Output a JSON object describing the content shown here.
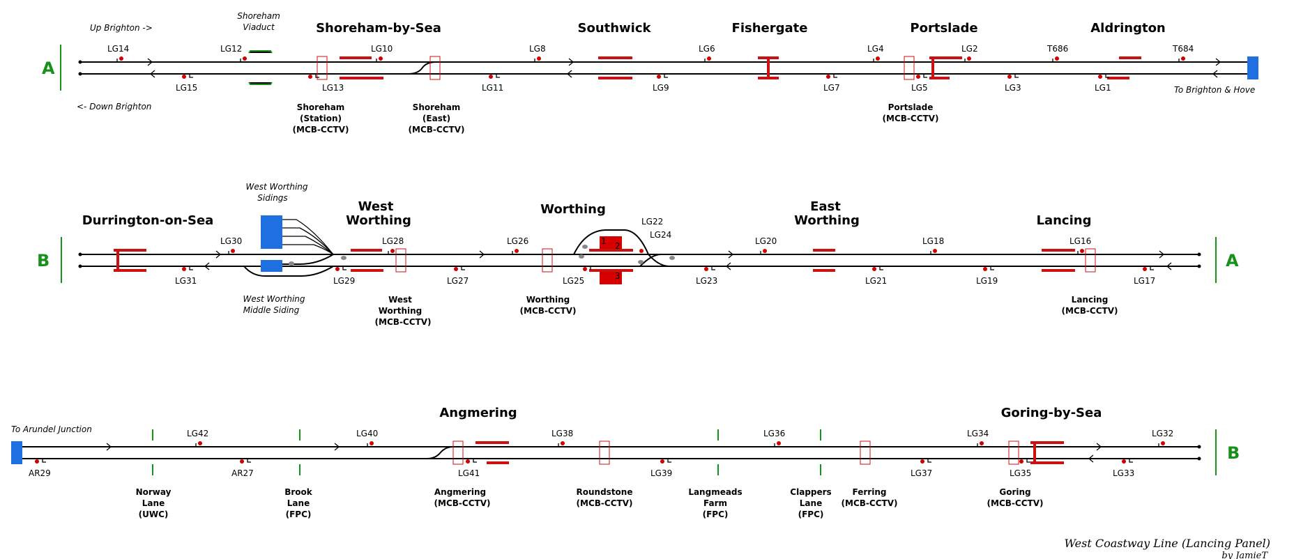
{
  "section_labels": {
    "a_left": "A",
    "b_left": "B",
    "a_right": "A",
    "b_right": "B"
  },
  "annotations": {
    "up_brighton": "Up Brighton ->",
    "down_brighton": "<- Down Brighton",
    "to_brighton_hove": "To Brighton & Hove",
    "to_arundel": "To Arundel Junction",
    "shoreham_viaduct_1": "Shoreham",
    "shoreham_viaduct_2": "Viaduct",
    "ww_sidings_1": "West Worthing",
    "ww_sidings_2": "Sidings",
    "ww_middle_1": "West Worthing",
    "ww_middle_2": "Middle Siding",
    "platform_1": "1",
    "platform_2": "2",
    "platform_3": "3"
  },
  "stations": {
    "shoreham": "Shoreham-by-Sea",
    "southwick": "Southwick",
    "fishergate": "Fishergate",
    "portslade": "Portslade",
    "aldrington": "Aldrington",
    "durrington": "Durrington-on-Sea",
    "west_worthing_1": "West",
    "west_worthing_2": "Worthing",
    "worthing": "Worthing",
    "east_worthing_1": "East",
    "east_worthing_2": "Worthing",
    "lancing": "Lancing",
    "angmering": "Angmering",
    "goring": "Goring-by-Sea"
  },
  "signals": {
    "lg14": "LG14",
    "lg12": "LG12",
    "lg10": "LG10",
    "lg8": "LG8",
    "lg6": "LG6",
    "lg4": "LG4",
    "lg2": "LG2",
    "t686": "T686",
    "t684": "T684",
    "lg15": "LG15",
    "lg13": "LG13",
    "lg11": "LG11",
    "lg9": "LG9",
    "lg7": "LG7",
    "lg5": "LG5",
    "lg3": "LG3",
    "lg1": "LG1",
    "lg30": "LG30",
    "lg28": "LG28",
    "lg26": "LG26",
    "lg22": "LG22",
    "lg24": "LG24",
    "lg20": "LG20",
    "lg18": "LG18",
    "lg16": "LG16",
    "lg31": "LG31",
    "lg29": "LG29",
    "lg27": "LG27",
    "lg25": "LG25",
    "lg23": "LG23",
    "lg21": "LG21",
    "lg19": "LG19",
    "lg17": "LG17",
    "lg42": "LG42",
    "lg40": "LG40",
    "lg38": "LG38",
    "lg36": "LG36",
    "lg34": "LG34",
    "lg32": "LG32",
    "ar29": "AR29",
    "ar27": "AR27",
    "lg41": "LG41",
    "lg39": "LG39",
    "lg37": "LG37",
    "lg35": "LG35",
    "lg33": "LG33"
  },
  "boxes": {
    "shoreham_station": [
      "Shoreham",
      "(Station)",
      "(MCB-CCTV)"
    ],
    "shoreham_east": [
      "Shoreham",
      "(East)",
      "(MCB-CCTV)"
    ],
    "portslade": [
      "Portslade",
      "(MCB-CCTV)"
    ],
    "west_worthing": [
      "West",
      "Worthing",
      "(MCB-CCTV)"
    ],
    "worthing": [
      "Worthing",
      "(MCB-CCTV)"
    ],
    "lancing": [
      "Lancing",
      "(MCB-CCTV)"
    ],
    "norway_lane": [
      "Norway",
      "Lane",
      "(UWC)"
    ],
    "brook_lane": [
      "Brook",
      "Lane",
      "(FPC)"
    ],
    "angmering": [
      "Angmering",
      "(MCB-CCTV)"
    ],
    "roundstone": [
      "Roundstone",
      "(MCB-CCTV)"
    ],
    "langmeads": [
      "Langmeads",
      "Farm",
      "(FPC)"
    ],
    "clappers": [
      "Clappers",
      "Lane",
      "(FPC)"
    ],
    "ferring": [
      "Ferring",
      "(MCB-CCTV)"
    ],
    "goring": [
      "Goring",
      "(MCB-CCTV)"
    ]
  },
  "footer": {
    "title": "West Coastway Line (Lancing Panel)",
    "author": "by JamieT"
  }
}
